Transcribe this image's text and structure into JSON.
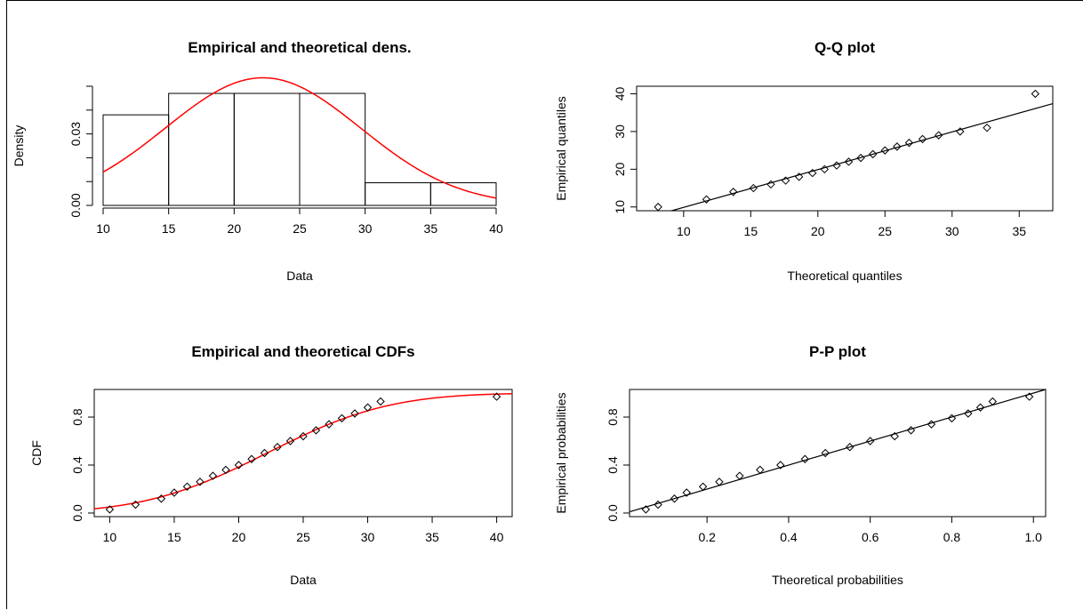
{
  "chart_data": [
    {
      "type": "histogram",
      "title": "Empirical and theoretical dens.",
      "xlabel": "Data",
      "ylabel": "Density",
      "xlim": [
        10,
        40
      ],
      "ylim": [
        0,
        0.05
      ],
      "x_ticks": [
        "10",
        "15",
        "20",
        "25",
        "30",
        "35",
        "40"
      ],
      "y_ticks": [
        "0.00",
        "0.03"
      ],
      "bins": [
        {
          "from": 10,
          "to": 15,
          "density": 0.038
        },
        {
          "from": 15,
          "to": 20,
          "density": 0.047
        },
        {
          "from": 20,
          "to": 25,
          "density": 0.047
        },
        {
          "from": 25,
          "to": 30,
          "density": 0.047
        },
        {
          "from": 30,
          "to": 35,
          "density": 0.0095
        },
        {
          "from": 35,
          "to": 40,
          "density": 0.0095
        }
      ],
      "curve": {
        "distribution": "normal",
        "mean": 22.2,
        "sd": 7.45,
        "color": "#ff0000"
      }
    },
    {
      "type": "scatter",
      "title": "Q-Q plot",
      "xlabel": "Theoretical quantiles",
      "ylabel": "Empirical quantiles",
      "xlim": [
        6.5,
        37.5
      ],
      "ylim": [
        9,
        42
      ],
      "x_ticks": [
        "10",
        "15",
        "20",
        "25",
        "30",
        "35"
      ],
      "y_ticks": [
        "10",
        "20",
        "30",
        "40"
      ],
      "points": [
        [
          8.1,
          10
        ],
        [
          11.7,
          12
        ],
        [
          13.7,
          14
        ],
        [
          15.2,
          15
        ],
        [
          16.5,
          16
        ],
        [
          17.6,
          17
        ],
        [
          18.6,
          18
        ],
        [
          19.6,
          19
        ],
        [
          20.5,
          20
        ],
        [
          21.4,
          21
        ],
        [
          22.3,
          22
        ],
        [
          23.2,
          23
        ],
        [
          24.1,
          24
        ],
        [
          25.0,
          25
        ],
        [
          25.9,
          26
        ],
        [
          26.8,
          27
        ],
        [
          27.8,
          28
        ],
        [
          29.0,
          29
        ],
        [
          30.6,
          30
        ],
        [
          32.6,
          31
        ],
        [
          36.2,
          40
        ]
      ],
      "reference_line": [
        [
          9.1,
          9
        ],
        [
          37.5,
          37.4
        ]
      ]
    },
    {
      "type": "scatter",
      "title": "Empirical and theoretical CDFs",
      "xlabel": "Data",
      "ylabel": "CDF",
      "xlim": [
        8.8,
        41.2
      ],
      "ylim": [
        -0.03,
        1.03
      ],
      "x_ticks": [
        "10",
        "15",
        "20",
        "25",
        "30",
        "35",
        "40"
      ],
      "y_ticks": [
        "0.0",
        "0.4",
        "0.8"
      ],
      "points": [
        [
          10,
          0.03
        ],
        [
          12,
          0.07
        ],
        [
          14,
          0.12
        ],
        [
          15,
          0.17
        ],
        [
          16,
          0.22
        ],
        [
          17,
          0.26
        ],
        [
          18,
          0.31
        ],
        [
          19,
          0.36
        ],
        [
          20,
          0.4
        ],
        [
          21,
          0.45
        ],
        [
          22,
          0.5
        ],
        [
          23,
          0.55
        ],
        [
          24,
          0.6
        ],
        [
          25,
          0.64
        ],
        [
          26,
          0.69
        ],
        [
          27,
          0.74
        ],
        [
          28,
          0.79
        ],
        [
          29,
          0.83
        ],
        [
          30,
          0.88
        ],
        [
          31,
          0.93
        ],
        [
          40,
          0.97
        ]
      ],
      "curve": {
        "distribution": "normal_cdf",
        "mean": 22.2,
        "sd": 7.45,
        "color": "#ff0000"
      }
    },
    {
      "type": "scatter",
      "title": "P-P plot",
      "xlabel": "Theoretical probabilities",
      "ylabel": "Empirical probabilities",
      "xlim": [
        0.01,
        1.03
      ],
      "ylim": [
        -0.03,
        1.03
      ],
      "x_ticks": [
        "0.2",
        "0.4",
        "0.6",
        "0.8",
        "1.0"
      ],
      "y_ticks": [
        "0.0",
        "0.4",
        "0.8"
      ],
      "points": [
        [
          0.05,
          0.03
        ],
        [
          0.08,
          0.07
        ],
        [
          0.12,
          0.12
        ],
        [
          0.15,
          0.17
        ],
        [
          0.19,
          0.22
        ],
        [
          0.23,
          0.26
        ],
        [
          0.28,
          0.31
        ],
        [
          0.33,
          0.36
        ],
        [
          0.38,
          0.4
        ],
        [
          0.44,
          0.45
        ],
        [
          0.49,
          0.5
        ],
        [
          0.55,
          0.55
        ],
        [
          0.6,
          0.6
        ],
        [
          0.66,
          0.64
        ],
        [
          0.7,
          0.69
        ],
        [
          0.75,
          0.74
        ],
        [
          0.8,
          0.79
        ],
        [
          0.84,
          0.83
        ],
        [
          0.87,
          0.88
        ],
        [
          0.9,
          0.93
        ],
        [
          0.99,
          0.97
        ]
      ],
      "reference_line": [
        [
          0.01,
          0.01
        ],
        [
          1.03,
          1.03
        ]
      ]
    }
  ]
}
